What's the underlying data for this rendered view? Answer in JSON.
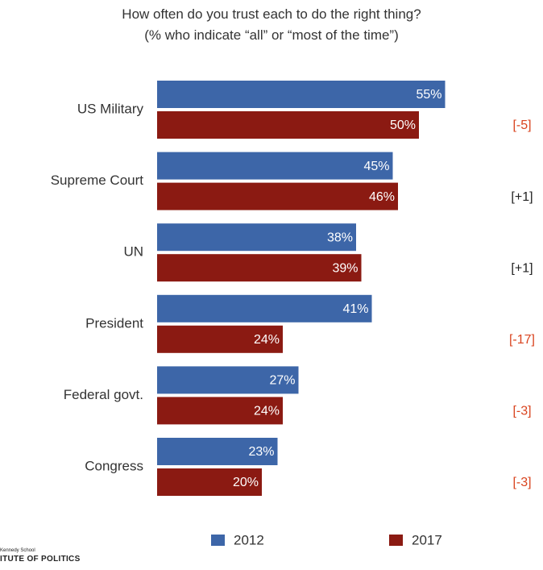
{
  "chart_data": {
    "type": "bar",
    "orientation": "horizontal",
    "title": "How often do you trust each to do the right thing?",
    "subtitle": "(% who indicate “all” or “most of the time”)",
    "categories": [
      "US Military",
      "Supreme Court",
      "UN",
      "President",
      "Federal govt.",
      "Congress"
    ],
    "series": [
      {
        "name": "2012",
        "color": "#3d66a8",
        "values": [
          55,
          45,
          38,
          41,
          27,
          23
        ],
        "labels": [
          "55%",
          "45%",
          "38%",
          "41%",
          "27%",
          "23%"
        ]
      },
      {
        "name": "2017",
        "color": "#8b1a12",
        "values": [
          50,
          46,
          39,
          24,
          24,
          20
        ],
        "labels": [
          "50%",
          "46%",
          "39%",
          "24%",
          "24%",
          "20%"
        ]
      }
    ],
    "changes": [
      "[-5]",
      "[+1]",
      "[+1]",
      "[-17]",
      "[-3]",
      "[-3]"
    ],
    "change_colors": [
      "#d9441f",
      "#222222",
      "#222222",
      "#d9441f",
      "#d9441f",
      "#d9441f"
    ],
    "xlim": [
      0,
      55
    ],
    "legend_position": "bottom",
    "grid": false
  },
  "logo": {
    "line1": "Kennedy School",
    "line2": "ITUTE OF POLITICS"
  }
}
